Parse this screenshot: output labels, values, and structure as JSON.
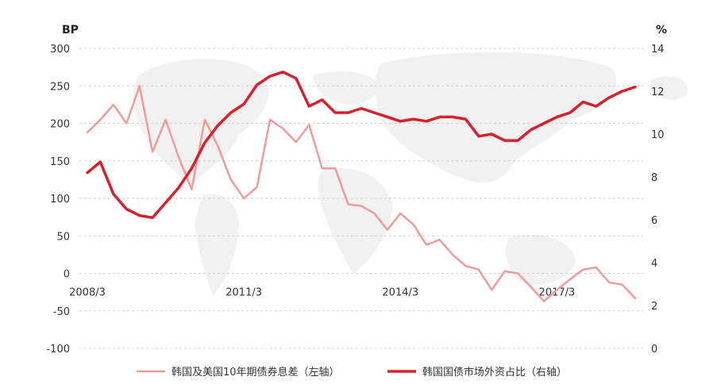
{
  "chart_data": {
    "type": "line",
    "left_unit": "BP",
    "right_unit": "%",
    "x_tick_labels": [
      "2008/3",
      "2011/3",
      "2014/3",
      "2017/3"
    ],
    "left_axis": {
      "min": -100,
      "max": 300,
      "ticks": [
        300,
        250,
        200,
        150,
        100,
        50,
        0,
        -50,
        -100
      ],
      "tick_labels": [
        "300",
        "250",
        "200",
        "150",
        "100",
        "50",
        "0",
        "-50",
        "-100"
      ]
    },
    "right_axis": {
      "min": 0,
      "max": 14,
      "ticks": [
        14,
        12,
        10,
        8,
        6,
        4,
        2,
        0
      ],
      "tick_labels": [
        "14",
        "12",
        "10",
        "8",
        "6",
        "4",
        "2",
        "0"
      ]
    },
    "grid": true,
    "legend_position": "bottom",
    "series": [
      {
        "name": "韩国及美国10年期债券息差（左轴）",
        "axis": "left",
        "color": "#f29a9a",
        "values": [
          188,
          205,
          225,
          200,
          250,
          162,
          205,
          155,
          112,
          205,
          170,
          125,
          100,
          115,
          205,
          193,
          175,
          198,
          140,
          140,
          92,
          90,
          80,
          58,
          80,
          65,
          38,
          45,
          25,
          10,
          5,
          -22,
          3,
          0,
          -18,
          -37,
          -22,
          -8,
          5,
          8,
          -12,
          -15,
          -33
        ]
      },
      {
        "name": "韩国国债市场外资占比（右轴）",
        "axis": "right",
        "color": "#d9202a",
        "values": [
          8.2,
          8.7,
          7.2,
          6.5,
          6.2,
          6.1,
          6.8,
          7.5,
          8.4,
          9.6,
          10.4,
          11.0,
          11.4,
          12.3,
          12.7,
          12.9,
          12.6,
          11.3,
          11.6,
          11.0,
          11.0,
          11.2,
          11.0,
          10.8,
          10.6,
          10.7,
          10.6,
          10.8,
          10.8,
          10.7,
          9.9,
          10.0,
          9.7,
          9.7,
          10.2,
          10.5,
          10.8,
          11.0,
          11.5,
          11.3,
          11.7,
          12.0,
          12.2
        ]
      }
    ]
  }
}
